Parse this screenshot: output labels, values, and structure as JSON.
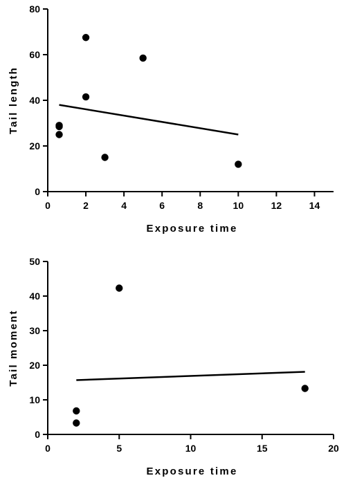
{
  "chart_data": [
    {
      "type": "scatter",
      "title": "",
      "xlabel": "Exposure time",
      "ylabel": "Tail length",
      "xlim": [
        0,
        15
      ],
      "ylim": [
        0,
        80
      ],
      "x_ticks": [
        0,
        2,
        4,
        6,
        8,
        10,
        12,
        14
      ],
      "y_ticks": [
        0,
        20,
        40,
        60,
        80
      ],
      "grid": false,
      "legend": false,
      "series": [
        {
          "points": [
            {
              "x": 0.6,
              "y": 29
            },
            {
              "x": 0.6,
              "y": 28.5
            },
            {
              "x": 0.6,
              "y": 25
            },
            {
              "x": 2,
              "y": 67.5
            },
            {
              "x": 2,
              "y": 41.5
            },
            {
              "x": 3,
              "y": 15
            },
            {
              "x": 5,
              "y": 58.5
            },
            {
              "x": 10,
              "y": 12
            }
          ]
        }
      ],
      "trend_line": {
        "x": [
          0.6,
          10
        ],
        "y": [
          38,
          25
        ]
      },
      "colors": {
        "marker": "#000000",
        "line": "#000000",
        "axis": "#000000"
      }
    },
    {
      "type": "scatter",
      "title": "",
      "xlabel": "Exposure time",
      "ylabel": "Tail moment",
      "xlim": [
        0,
        20
      ],
      "ylim": [
        0,
        50
      ],
      "x_ticks": [
        0,
        5,
        10,
        15,
        20
      ],
      "y_ticks": [
        0,
        10,
        20,
        30,
        40,
        50
      ],
      "grid": false,
      "legend": false,
      "series": [
        {
          "points": [
            {
              "x": 2,
              "y": 6.8
            },
            {
              "x": 2,
              "y": 3.3
            },
            {
              "x": 5,
              "y": 42.3
            },
            {
              "x": 18,
              "y": 13.3
            }
          ]
        }
      ],
      "trend_line": {
        "x": [
          2,
          18
        ],
        "y": [
          15.7,
          18.1
        ]
      },
      "colors": {
        "marker": "#000000",
        "line": "#000000",
        "axis": "#000000"
      }
    }
  ]
}
